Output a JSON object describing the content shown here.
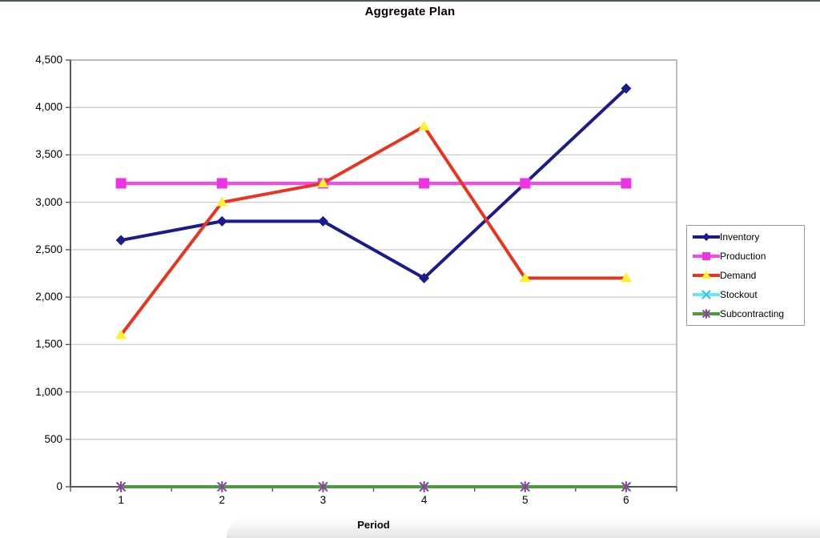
{
  "window": {
    "top_border_color": "#4d585e"
  },
  "chart_data": {
    "type": "line",
    "title": "Aggregate Plan",
    "xlabel": "Period",
    "ylabel": "",
    "categories": [
      "1",
      "2",
      "3",
      "4",
      "5",
      "6"
    ],
    "ylim": [
      0,
      4500
    ],
    "ytick_step": 500,
    "yticks": [
      0,
      500,
      1000,
      1500,
      2000,
      2500,
      3000,
      3500,
      4000,
      4500
    ],
    "ytick_labels": [
      "0",
      "500",
      "1,000",
      "1,500",
      "2,000",
      "2,500",
      "3,000",
      "3,500",
      "4,000",
      "4,500"
    ],
    "grid": true,
    "legend_position": "right",
    "colors": {
      "gridline": "#c8c8c8",
      "plot_border": "#a2a2a2",
      "axis": "#565656",
      "background": "#ffffff"
    },
    "series": [
      {
        "name": "Inventory",
        "values": [
          2600,
          2800,
          2800,
          2200,
          3200,
          4200
        ],
        "color": "#1b1b8c",
        "marker": "diamond",
        "marker_color": "#1b1b8c"
      },
      {
        "name": "Production",
        "values": [
          3200,
          3200,
          3200,
          3200,
          3200,
          3200
        ],
        "color": "#ff42f4",
        "marker": "square",
        "marker_color": "#ee33e2"
      },
      {
        "name": "Demand",
        "values": [
          1600,
          3000,
          3200,
          3800,
          2200,
          2200
        ],
        "color": "#e9341f",
        "marker": "triangle",
        "marker_color": "#fdf02d"
      },
      {
        "name": "Stockout",
        "values": [
          0,
          0,
          0,
          0,
          0,
          0
        ],
        "color": "#67e9f5",
        "marker": "x",
        "marker_color": "#30c8de"
      },
      {
        "name": "Subcontracting",
        "values": [
          0,
          0,
          0,
          0,
          0,
          0
        ],
        "color": "#4f9a3d",
        "marker": "asterisk",
        "marker_color": "#8e3fa0"
      }
    ]
  }
}
